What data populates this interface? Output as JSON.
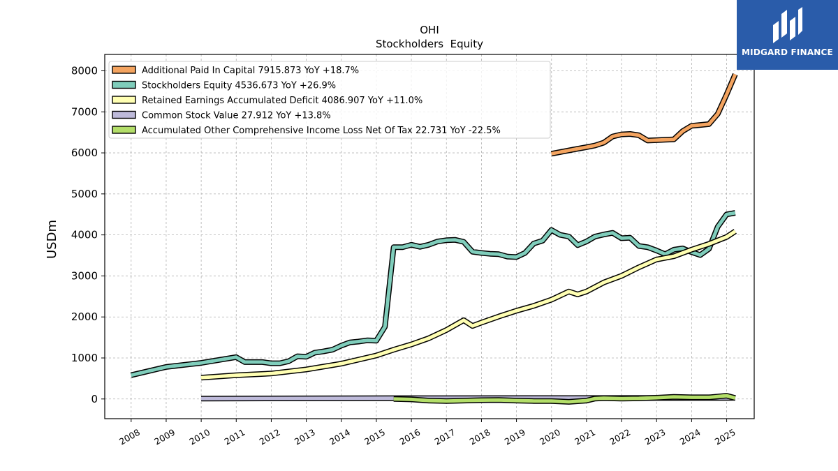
{
  "brand": {
    "name": "MIDGARD FINANCE",
    "bg_color": "#2a5caa"
  },
  "chart_data": {
    "type": "line",
    "title": "OHI",
    "subtitle": "Stockholders  Equity",
    "ylabel": "USDm",
    "xlabel": "",
    "ylim": [
      -480,
      8400
    ],
    "xlim": [
      "2007-04-01",
      "2025-10-15"
    ],
    "yticks": [
      0,
      1000,
      2000,
      3000,
      4000,
      5000,
      6000,
      7000,
      8000
    ],
    "xticks": [
      "2008",
      "2009",
      "2010",
      "2011",
      "2012",
      "2013",
      "2014",
      "2015",
      "2016",
      "2017",
      "2018",
      "2019",
      "2020",
      "2021",
      "2022",
      "2023",
      "2024",
      "2025"
    ],
    "grid": true,
    "legend_position": "top-left",
    "series": [
      {
        "name": "Additional Paid In Capital",
        "legend": "Additional Paid In Capital  7915.873 YoY +18.7%",
        "color": "#f4a460",
        "points": [
          [
            "2019-12-31",
            5980
          ],
          [
            "2020-03-31",
            6020
          ],
          [
            "2020-06-30",
            6060
          ],
          [
            "2020-09-30",
            6100
          ],
          [
            "2020-12-31",
            6140
          ],
          [
            "2021-03-31",
            6180
          ],
          [
            "2021-06-30",
            6250
          ],
          [
            "2021-09-30",
            6400
          ],
          [
            "2021-12-31",
            6450
          ],
          [
            "2022-03-31",
            6460
          ],
          [
            "2022-06-30",
            6430
          ],
          [
            "2022-09-30",
            6300
          ],
          [
            "2022-12-31",
            6310
          ],
          [
            "2023-03-31",
            6320
          ],
          [
            "2023-06-30",
            6330
          ],
          [
            "2023-09-30",
            6530
          ],
          [
            "2023-12-31",
            6660
          ],
          [
            "2024-03-31",
            6680
          ],
          [
            "2024-06-30",
            6700
          ],
          [
            "2024-09-30",
            6950
          ],
          [
            "2024-12-31",
            7420
          ],
          [
            "2025-03-31",
            7916
          ]
        ]
      },
      {
        "name": "Stockholders Equity",
        "legend": "Stockholders Equity  4536.673 YoY +26.9%",
        "color": "#7fcdbb",
        "points": [
          [
            "2007-12-31",
            580
          ],
          [
            "2008-12-31",
            780
          ],
          [
            "2009-12-31",
            880
          ],
          [
            "2010-12-31",
            1020
          ],
          [
            "2011-03-31",
            900
          ],
          [
            "2011-06-30",
            900
          ],
          [
            "2011-09-30",
            900
          ],
          [
            "2011-12-31",
            870
          ],
          [
            "2012-03-31",
            870
          ],
          [
            "2012-06-30",
            920
          ],
          [
            "2012-09-30",
            1040
          ],
          [
            "2012-12-31",
            1030
          ],
          [
            "2013-03-31",
            1130
          ],
          [
            "2013-06-30",
            1160
          ],
          [
            "2013-09-30",
            1200
          ],
          [
            "2013-12-31",
            1300
          ],
          [
            "2014-03-31",
            1380
          ],
          [
            "2014-06-30",
            1400
          ],
          [
            "2014-09-30",
            1430
          ],
          [
            "2014-12-31",
            1420
          ],
          [
            "2015-03-31",
            1760
          ],
          [
            "2015-06-30",
            3700
          ],
          [
            "2015-09-30",
            3700
          ],
          [
            "2015-12-31",
            3760
          ],
          [
            "2016-03-31",
            3710
          ],
          [
            "2016-06-30",
            3760
          ],
          [
            "2016-09-30",
            3840
          ],
          [
            "2016-12-31",
            3870
          ],
          [
            "2017-03-31",
            3880
          ],
          [
            "2017-06-30",
            3830
          ],
          [
            "2017-09-30",
            3590
          ],
          [
            "2017-12-31",
            3560
          ],
          [
            "2018-03-31",
            3540
          ],
          [
            "2018-06-30",
            3530
          ],
          [
            "2018-09-30",
            3470
          ],
          [
            "2018-12-31",
            3460
          ],
          [
            "2019-03-31",
            3560
          ],
          [
            "2019-06-30",
            3790
          ],
          [
            "2019-09-30",
            3860
          ],
          [
            "2019-12-31",
            4120
          ],
          [
            "2020-03-31",
            4000
          ],
          [
            "2020-06-30",
            3960
          ],
          [
            "2020-09-30",
            3750
          ],
          [
            "2020-12-31",
            3840
          ],
          [
            "2021-03-31",
            3960
          ],
          [
            "2021-06-30",
            4010
          ],
          [
            "2021-09-30",
            4050
          ],
          [
            "2021-12-31",
            3920
          ],
          [
            "2022-03-31",
            3930
          ],
          [
            "2022-06-30",
            3730
          ],
          [
            "2022-09-30",
            3700
          ],
          [
            "2022-12-31",
            3620
          ],
          [
            "2023-03-31",
            3530
          ],
          [
            "2023-06-30",
            3640
          ],
          [
            "2023-09-30",
            3670
          ],
          [
            "2023-12-31",
            3580
          ],
          [
            "2024-03-31",
            3510
          ],
          [
            "2024-06-30",
            3660
          ],
          [
            "2024-09-30",
            4200
          ],
          [
            "2024-12-31",
            4500
          ],
          [
            "2025-03-31",
            4537
          ]
        ]
      },
      {
        "name": "Retained Earnings Accumulated Deficit",
        "legend": "Retained Earnings Accumulated Deficit  4086.907 YoY +11.0%",
        "color": "#ffffb3",
        "points": [
          [
            "2009-12-31",
            520
          ],
          [
            "2010-12-31",
            580
          ],
          [
            "2011-12-31",
            620
          ],
          [
            "2012-12-31",
            720
          ],
          [
            "2013-12-31",
            860
          ],
          [
            "2014-12-31",
            1060
          ],
          [
            "2015-06-30",
            1200
          ],
          [
            "2015-12-31",
            1330
          ],
          [
            "2016-06-30",
            1480
          ],
          [
            "2016-12-31",
            1680
          ],
          [
            "2017-06-30",
            1920
          ],
          [
            "2017-09-30",
            1780
          ],
          [
            "2017-12-31",
            1860
          ],
          [
            "2018-06-30",
            2010
          ],
          [
            "2018-12-31",
            2150
          ],
          [
            "2019-06-30",
            2270
          ],
          [
            "2019-12-31",
            2420
          ],
          [
            "2020-06-30",
            2620
          ],
          [
            "2020-09-30",
            2550
          ],
          [
            "2020-12-31",
            2620
          ],
          [
            "2021-06-30",
            2840
          ],
          [
            "2021-12-31",
            3000
          ],
          [
            "2022-06-30",
            3210
          ],
          [
            "2022-12-31",
            3400
          ],
          [
            "2023-06-30",
            3480
          ],
          [
            "2023-12-31",
            3640
          ],
          [
            "2024-06-30",
            3780
          ],
          [
            "2024-12-31",
            3950
          ],
          [
            "2025-03-31",
            4087
          ]
        ]
      },
      {
        "name": "Common Stock Value",
        "legend": "Common Stock Value  27.912 YoY +13.8%",
        "color": "#bebada",
        "points": [
          [
            "2009-12-31",
            10
          ],
          [
            "2015-06-30",
            20
          ],
          [
            "2020-06-30",
            22
          ],
          [
            "2024-12-31",
            27
          ],
          [
            "2025-03-31",
            28
          ]
        ]
      },
      {
        "name": "Accumulated Other Comprehensive Income Loss Net Of Tax",
        "legend": "Accumulated Other Comprehensive Income Loss Net Of Tax  22.731 YoY -22.5%",
        "color": "#b3de69",
        "points": [
          [
            "2015-06-30",
            0
          ],
          [
            "2015-12-31",
            -10
          ],
          [
            "2016-06-30",
            -40
          ],
          [
            "2016-12-31",
            -50
          ],
          [
            "2017-06-30",
            -40
          ],
          [
            "2017-12-31",
            -30
          ],
          [
            "2018-06-30",
            -25
          ],
          [
            "2018-12-31",
            -40
          ],
          [
            "2019-06-30",
            -50
          ],
          [
            "2019-12-31",
            -50
          ],
          [
            "2020-06-30",
            -70
          ],
          [
            "2020-12-31",
            -40
          ],
          [
            "2021-03-31",
            10
          ],
          [
            "2021-06-30",
            20
          ],
          [
            "2021-12-31",
            10
          ],
          [
            "2022-06-30",
            15
          ],
          [
            "2022-12-31",
            30
          ],
          [
            "2023-06-30",
            50
          ],
          [
            "2023-12-31",
            40
          ],
          [
            "2024-06-30",
            40
          ],
          [
            "2024-09-30",
            60
          ],
          [
            "2024-12-31",
            80
          ],
          [
            "2025-03-31",
            23
          ]
        ]
      }
    ]
  }
}
